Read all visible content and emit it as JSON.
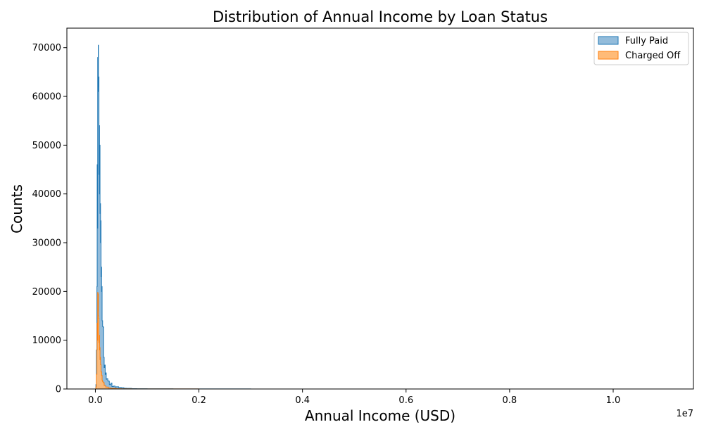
{
  "chart_data": {
    "type": "histogram",
    "title": "Distribution of Annual Income by Loan Status",
    "xlabel": "Annual Income (USD)",
    "ylabel": "Counts",
    "x_scale_label": "1e7",
    "xlim": [
      -550000,
      11550000
    ],
    "ylim": [
      0,
      74000
    ],
    "x_ticks": [
      {
        "value": 0,
        "label": "0.0"
      },
      {
        "value": 2000000,
        "label": "0.2"
      },
      {
        "value": 4000000,
        "label": "0.4"
      },
      {
        "value": 6000000,
        "label": "0.6"
      },
      {
        "value": 8000000,
        "label": "0.8"
      },
      {
        "value": 10000000,
        "label": "1.0"
      }
    ],
    "y_ticks": [
      {
        "value": 0,
        "label": "0"
      },
      {
        "value": 10000,
        "label": "10000"
      },
      {
        "value": 20000,
        "label": "20000"
      },
      {
        "value": 30000,
        "label": "30000"
      },
      {
        "value": 40000,
        "label": "40000"
      },
      {
        "value": 50000,
        "label": "50000"
      },
      {
        "value": 60000,
        "label": "60000"
      },
      {
        "value": 70000,
        "label": "70000"
      }
    ],
    "grid": false,
    "legend_position": "top-right",
    "series": [
      {
        "name": "Fully Paid",
        "fill": "#93bcdb",
        "edge": "#1f77b4",
        "points": [
          [
            0,
            0
          ],
          [
            10000,
            900
          ],
          [
            20000,
            8000
          ],
          [
            30000,
            21000
          ],
          [
            35000,
            46000
          ],
          [
            40000,
            33000
          ],
          [
            45000,
            68000
          ],
          [
            50000,
            61000
          ],
          [
            55000,
            70500
          ],
          [
            60000,
            62000
          ],
          [
            65000,
            64000
          ],
          [
            70000,
            44000
          ],
          [
            75000,
            54000
          ],
          [
            80000,
            40000
          ],
          [
            85000,
            50000
          ],
          [
            90000,
            36000
          ],
          [
            95000,
            38000
          ],
          [
            100000,
            30000
          ],
          [
            105000,
            34500
          ],
          [
            110000,
            23000
          ],
          [
            115000,
            25000
          ],
          [
            120000,
            20000
          ],
          [
            125000,
            21000
          ],
          [
            130000,
            14000
          ],
          [
            140000,
            12800
          ],
          [
            150000,
            12700
          ],
          [
            160000,
            6500
          ],
          [
            170000,
            4400
          ],
          [
            180000,
            4900
          ],
          [
            190000,
            3000
          ],
          [
            200000,
            3300
          ],
          [
            210000,
            2000
          ],
          [
            220000,
            2100
          ],
          [
            240000,
            1700
          ],
          [
            250000,
            1600
          ],
          [
            270000,
            900
          ],
          [
            300000,
            1200
          ],
          [
            320000,
            500
          ],
          [
            350000,
            600
          ],
          [
            380000,
            400
          ],
          [
            400000,
            450
          ],
          [
            450000,
            300
          ],
          [
            500000,
            250
          ],
          [
            550000,
            150
          ],
          [
            600000,
            120
          ],
          [
            700000,
            80
          ],
          [
            800000,
            60
          ],
          [
            1000000,
            40
          ],
          [
            1500000,
            25
          ],
          [
            2000000,
            15
          ],
          [
            3000000,
            8
          ],
          [
            5000000,
            4
          ],
          [
            7000000,
            2
          ],
          [
            9000000,
            1
          ],
          [
            11000000,
            0
          ]
        ]
      },
      {
        "name": "Charged Off",
        "fill": "#ffbb78",
        "edge": "#ff7f0e",
        "points": [
          [
            0,
            0
          ],
          [
            10000,
            400
          ],
          [
            20000,
            3000
          ],
          [
            30000,
            8000
          ],
          [
            35000,
            13500
          ],
          [
            40000,
            10000
          ],
          [
            45000,
            19800
          ],
          [
            50000,
            16000
          ],
          [
            55000,
            19500
          ],
          [
            60000,
            15000
          ],
          [
            65000,
            14500
          ],
          [
            70000,
            9500
          ],
          [
            75000,
            11000
          ],
          [
            80000,
            8000
          ],
          [
            85000,
            8500
          ],
          [
            90000,
            6000
          ],
          [
            95000,
            6500
          ],
          [
            100000,
            5000
          ],
          [
            110000,
            3500
          ],
          [
            120000,
            2800
          ],
          [
            130000,
            1800
          ],
          [
            140000,
            1500
          ],
          [
            150000,
            1300
          ],
          [
            170000,
            700
          ],
          [
            200000,
            400
          ],
          [
            250000,
            200
          ],
          [
            300000,
            120
          ],
          [
            400000,
            60
          ],
          [
            500000,
            40
          ],
          [
            700000,
            20
          ],
          [
            1000000,
            10
          ],
          [
            2000000,
            5
          ],
          [
            4000000,
            2
          ],
          [
            7000000,
            1
          ],
          [
            11000000,
            0
          ]
        ]
      }
    ]
  }
}
